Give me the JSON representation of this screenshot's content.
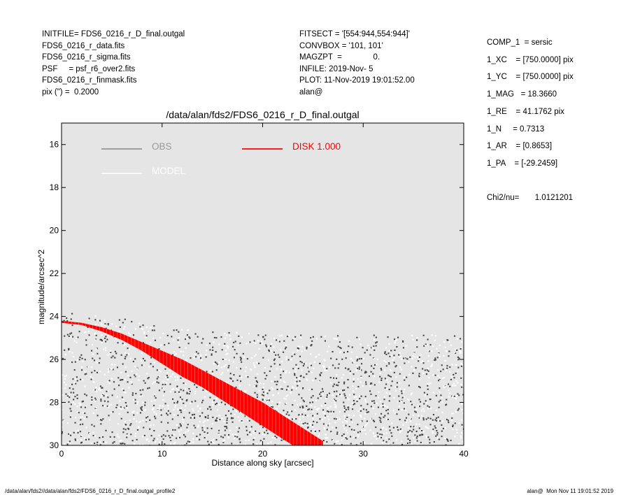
{
  "header_left": [
    "INITFILE= FDS6_0216_r_D_final.outgal",
    "FDS6_0216_r_data.fits",
    "FDS6_0216_r_sigma.fits",
    "PSF     = psf_r6_over2.fits",
    "FDS6_0216_r_finmask.fits",
    "pix (\") =  0.2000"
  ],
  "header_mid": [
    "FITSECT = '[554:944,554:944]'",
    "CONVBOX = '101, 101'",
    "MAGZPT  =              0.",
    "INFILE: 2019-Nov- 5",
    "PLOT: 11-Nov-2019 19:01:52.00",
    "alan@"
  ],
  "header_right": [
    "COMP_1  = sersic",
    "1_XC    = [750.0000] pix",
    "1_YC    = [750.0000] pix",
    "1_MAG   = 18.3660",
    "1_RE    = 41.1762 pix",
    "1_N     = 0.7313",
    "1_AR    = [0.8653]",
    "1_PA    = [-29.2459]",
    "",
    "Chi2/nu=       1.0121201"
  ],
  "footer_left": "/data/alan/fds2//data/alan/fds2/FDS6_0216_r_D_final.outgal_profile2",
  "footer_right": "alan@  Mon Nov 11 19:01:52 2019",
  "chart_data": {
    "type": "scatter",
    "title": "/data/alan/fds2/FDS6_0216_r_D_final.outgal",
    "xlabel": "Distance along sky [arcsec]",
    "ylabel": "magnitude/arcsec^2",
    "xlim": [
      0,
      40
    ],
    "ylim": [
      30,
      15
    ],
    "y_inverted": true,
    "x_ticks": [
      0,
      10,
      20,
      30,
      40
    ],
    "y_ticks": [
      16,
      18,
      20,
      22,
      24,
      26,
      28,
      30
    ],
    "background": "#e5e5e5",
    "grid": false,
    "legend": [
      {
        "label": "OBS",
        "color": "#888888"
      },
      {
        "label": "MODEL",
        "color": "#ffffff"
      },
      {
        "label": "DISK  1.000",
        "color": "#ff0000"
      }
    ],
    "series": [
      {
        "name": "OBS",
        "color": "#444444",
        "style": "points",
        "envelope_x": [
          0,
          2,
          4,
          6,
          8,
          10,
          12,
          14,
          16,
          18,
          20,
          22,
          24,
          26,
          28,
          30,
          32,
          34,
          36,
          38,
          40
        ],
        "envelope_top": [
          23.9,
          24.0,
          24.1,
          24.2,
          24.4,
          24.6,
          24.7,
          24.8,
          24.9,
          24.9,
          25.0,
          25.0,
          25.0,
          25.0,
          25.0,
          25.0,
          25.0,
          25.0,
          25.0,
          25.0,
          25.0
        ]
      },
      {
        "name": "MODEL",
        "color": "#ffffff",
        "style": "points"
      },
      {
        "name": "DISK  1.000",
        "color": "#ff0000",
        "style": "band",
        "x": [
          0,
          2,
          4,
          6,
          8,
          10,
          12,
          14,
          16,
          18,
          20,
          22,
          24,
          26
        ],
        "y_upper": [
          24.2,
          24.3,
          24.5,
          24.8,
          25.2,
          25.6,
          26.0,
          26.5,
          27.0,
          27.5,
          28.0,
          28.6,
          29.2,
          29.8
        ],
        "y_lower": [
          24.3,
          24.4,
          24.7,
          25.1,
          25.6,
          26.2,
          26.8,
          27.3,
          27.9,
          28.5,
          29.1,
          29.7,
          30.3,
          30.9
        ]
      }
    ]
  }
}
